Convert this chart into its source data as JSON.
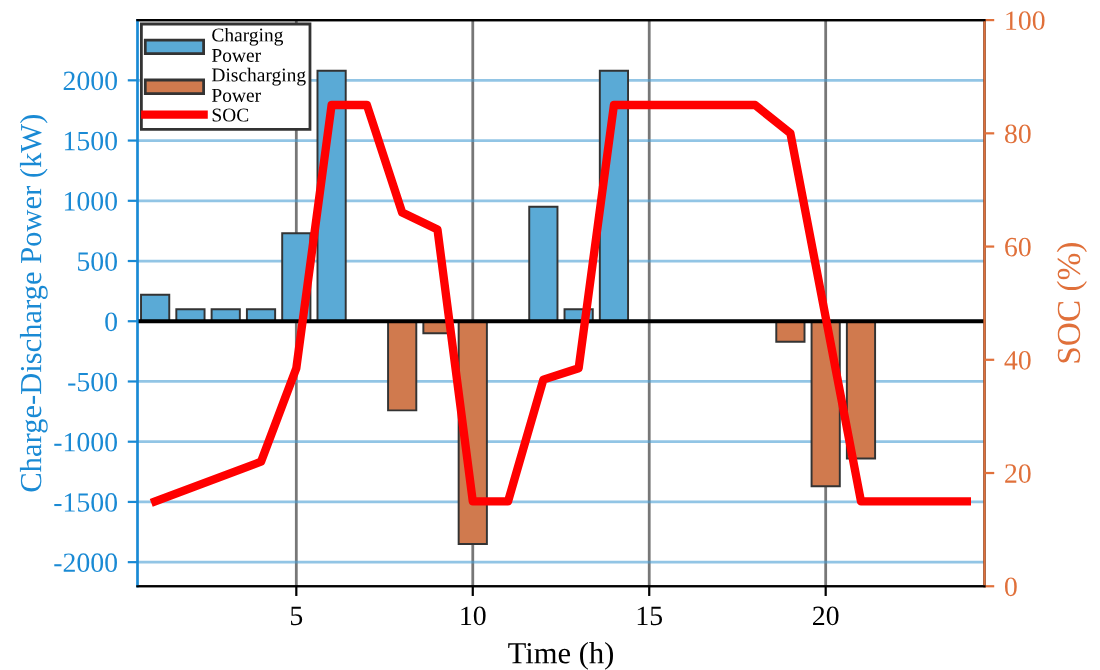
{
  "chart_data": {
    "type": "bar",
    "xlabel": "Time (h)",
    "ylabel": "Charge-Discharge Power (kW)",
    "y2label": "SOC (%)",
    "x": [
      1,
      2,
      3,
      4,
      5,
      6,
      7,
      8,
      9,
      10,
      11,
      12,
      13,
      14,
      15,
      16,
      17,
      18,
      19,
      20,
      21
    ],
    "series": [
      {
        "name": "Charging Power",
        "color": "#5aaad6",
        "values": [
          220,
          100,
          100,
          100,
          730,
          2080,
          null,
          null,
          null,
          null,
          null,
          950,
          100,
          2080,
          null,
          null,
          null,
          null,
          null,
          null,
          null
        ]
      },
      {
        "name": "Discharging Power",
        "color": "#d07a4e",
        "values": [
          null,
          null,
          null,
          null,
          null,
          null,
          null,
          -740,
          -100,
          -1850,
          null,
          null,
          null,
          null,
          null,
          null,
          null,
          null,
          -170,
          -1370,
          -1140
        ]
      },
      {
        "name": "SOC",
        "type": "line",
        "axis": "y2",
        "color": "#ff0000",
        "x": [
          1,
          4,
          5,
          6,
          7,
          8,
          9,
          10,
          11,
          12,
          13,
          14,
          18,
          19,
          21,
          24
        ],
        "values": [
          15,
          22,
          38.5,
          85,
          85,
          66,
          63,
          15,
          15,
          36.5,
          38.5,
          85,
          85,
          80,
          15,
          15
        ]
      }
    ],
    "xlim": [
      0.5,
      24.5
    ],
    "xticks": [
      5,
      10,
      15,
      20
    ],
    "ylim": [
      -2200,
      2500
    ],
    "yticks": [
      -2000,
      -1500,
      -1000,
      -500,
      0,
      500,
      1000,
      1500,
      2000
    ],
    "y2lim": [
      0,
      100
    ],
    "y2ticks": [
      0,
      20,
      40,
      60,
      80,
      100
    ],
    "ref_lines": [
      {
        "axis": "y",
        "value": 0,
        "color": "#000000"
      }
    ],
    "grid": true,
    "legend": "top left"
  }
}
